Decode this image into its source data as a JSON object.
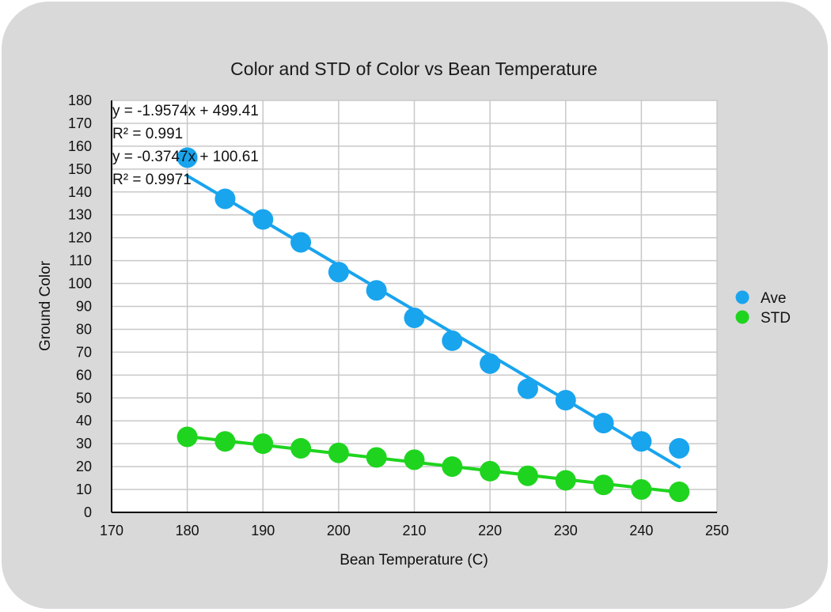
{
  "chart_data": {
    "type": "scatter",
    "title": "Color and STD of Color vs Bean Temperature",
    "xlabel": "Bean Temperature (C)",
    "ylabel": "Ground Color",
    "xlim": [
      170,
      250
    ],
    "ylim": [
      0,
      180
    ],
    "xticks": [
      170,
      180,
      190,
      200,
      210,
      220,
      230,
      240,
      250
    ],
    "yticks": [
      0,
      10,
      20,
      30,
      40,
      50,
      60,
      70,
      80,
      90,
      100,
      110,
      120,
      130,
      140,
      150,
      160,
      170,
      180
    ],
    "grid": true,
    "legend_position": "right",
    "series": [
      {
        "name": "Ave",
        "color": "#19a4ee",
        "x": [
          180,
          185,
          190,
          195,
          200,
          205,
          210,
          215,
          220,
          225,
          230,
          235,
          240,
          245
        ],
        "y": [
          155,
          137,
          128,
          118,
          105,
          97,
          85,
          75,
          65,
          54,
          49,
          39,
          31,
          28
        ],
        "trendline": {
          "slope": -1.9574,
          "intercept": 499.41
        }
      },
      {
        "name": "STD",
        "color": "#1fd41f",
        "x": [
          180,
          185,
          190,
          195,
          200,
          205,
          210,
          215,
          220,
          225,
          230,
          235,
          240,
          245
        ],
        "y": [
          33,
          31,
          30,
          28,
          26,
          24,
          23,
          20,
          18,
          16,
          14,
          12,
          10,
          9
        ],
        "trendline": {
          "slope": -0.3747,
          "intercept": 100.61
        }
      }
    ],
    "annotations": [
      "y = -1.9574x + 499.41",
      "R² = 0.991",
      "y = -0.3747x + 100.61",
      "R² = 0.9971"
    ]
  }
}
